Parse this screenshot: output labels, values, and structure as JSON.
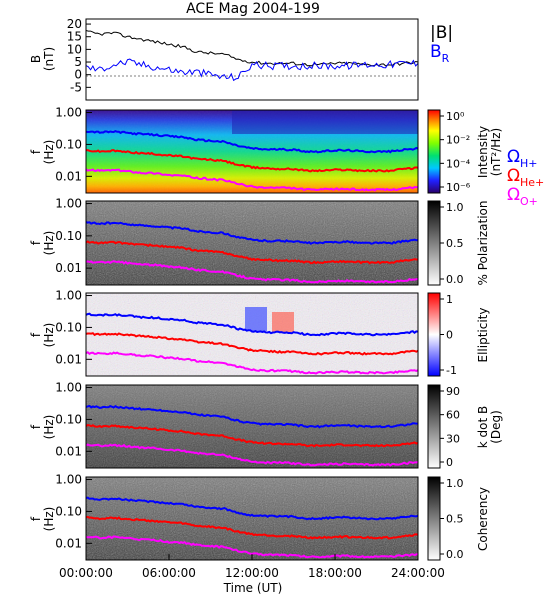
{
  "title": "ACE Mag 2004-199",
  "x_axis": {
    "label": "Time (UT)",
    "ticks": [
      "00:00:00",
      "06:00:00",
      "12:00:00",
      "18:00:00",
      "24:00:00"
    ],
    "range_hours": [
      0,
      24
    ]
  },
  "colors": {
    "total_field": "#000000",
    "radial_field": "#0000ff",
    "H_gyro": "#0000ff",
    "He_gyro": "#ff0000",
    "O_gyro": "#ff00ff"
  },
  "panels": {
    "field": {
      "ylabel": "B",
      "yunit": "(nT)",
      "ticks": [
        "20",
        "15",
        "10",
        "5",
        "0",
        "-5"
      ],
      "legend": {
        "total": "|B|",
        "radial_main": "B",
        "radial_sub": "R"
      }
    },
    "intensity": {
      "ylabel": "f",
      "yunit": "(Hz)",
      "ticks": [
        "1.00",
        "0.10",
        "0.01"
      ],
      "colorbar": {
        "label": "Intensity",
        "unit": "(nT²/Hz)",
        "ticks": [
          "10⁰",
          "10⁻²",
          "10⁻⁴",
          "10⁻⁶"
        ]
      },
      "legend": [
        {
          "main": "Ω",
          "sub": "H+"
        },
        {
          "main": "Ω",
          "sub": "He+"
        },
        {
          "main": "Ω",
          "sub": "O+"
        }
      ]
    },
    "polarization": {
      "ylabel": "f",
      "yunit": "(Hz)",
      "ticks": [
        "1.00",
        "0.10",
        "0.01"
      ],
      "colorbar": {
        "label": "% Polarization",
        "ticks": [
          "1.0",
          "0.5",
          "0.0"
        ]
      }
    },
    "ellipticity": {
      "ylabel": "f",
      "yunit": "(Hz)",
      "ticks": [
        "1.00",
        "0.10",
        "0.01"
      ],
      "colorbar": {
        "label": "Ellipticity",
        "ticks": [
          "1",
          "0",
          "-1"
        ]
      }
    },
    "kdotb": {
      "ylabel": "f",
      "yunit": "(Hz)",
      "ticks": [
        "1.00",
        "0.10",
        "0.01"
      ],
      "colorbar": {
        "label": "k dot B",
        "unit": "(Deg)",
        "ticks": [
          "90",
          "60",
          "30",
          "0"
        ]
      }
    },
    "coherency": {
      "ylabel": "f",
      "yunit": "(Hz)",
      "ticks": [
        "1.00",
        "0.10",
        "0.01"
      ],
      "colorbar": {
        "label": "Coherency",
        "ticks": [
          "1.0",
          "0.5",
          "0.0"
        ]
      }
    }
  },
  "chart_data": {
    "type": "line",
    "title": "ACE Mag 2004-199",
    "xlabel": "Time (UT)",
    "x_hours": [
      0,
      1,
      2,
      3,
      4,
      5,
      6,
      7,
      8,
      9,
      10,
      11,
      12,
      13,
      14,
      15,
      16,
      17,
      18,
      19,
      20,
      21,
      22,
      23,
      24
    ],
    "field_ylim": [
      -10,
      22
    ],
    "field_series": [
      {
        "name": "|B|",
        "values": [
          17,
          16,
          16.5,
          15,
          14,
          13,
          12,
          11,
          9,
          8.5,
          8,
          6,
          5,
          4.5,
          4.5,
          4.5,
          4,
          4,
          4.5,
          4.5,
          4,
          4,
          4,
          4.5,
          5
        ]
      },
      {
        "name": "BR",
        "values": [
          3,
          2,
          4,
          5,
          4,
          3,
          2,
          1,
          1,
          0,
          -1,
          -1,
          4,
          3.5,
          3.5,
          3.5,
          3.5,
          3.5,
          3.5,
          3.5,
          4,
          4,
          4,
          4.5,
          4.5
        ]
      }
    ],
    "freq_ylim_hz": [
      0.003,
      1.2
    ],
    "gyro_series": [
      {
        "name": "ΩH+",
        "values_hz": [
          0.26,
          0.24,
          0.25,
          0.23,
          0.21,
          0.2,
          0.18,
          0.17,
          0.14,
          0.13,
          0.12,
          0.09,
          0.075,
          0.07,
          0.07,
          0.068,
          0.06,
          0.06,
          0.065,
          0.065,
          0.06,
          0.06,
          0.06,
          0.068,
          0.074
        ]
      },
      {
        "name": "ΩHe+",
        "values_hz": [
          0.065,
          0.06,
          0.063,
          0.058,
          0.053,
          0.05,
          0.045,
          0.042,
          0.035,
          0.033,
          0.03,
          0.023,
          0.019,
          0.018,
          0.017,
          0.017,
          0.015,
          0.015,
          0.016,
          0.016,
          0.015,
          0.015,
          0.015,
          0.017,
          0.0185
        ]
      },
      {
        "name": "ΩO+",
        "values_hz": [
          0.016,
          0.015,
          0.0157,
          0.0145,
          0.013,
          0.0125,
          0.011,
          0.0105,
          0.0088,
          0.0082,
          0.0075,
          0.0058,
          0.0047,
          0.0044,
          0.0044,
          0.0042,
          0.0038,
          0.0038,
          0.004,
          0.004,
          0.0038,
          0.0038,
          0.0038,
          0.0042,
          0.0046
        ]
      }
    ]
  }
}
